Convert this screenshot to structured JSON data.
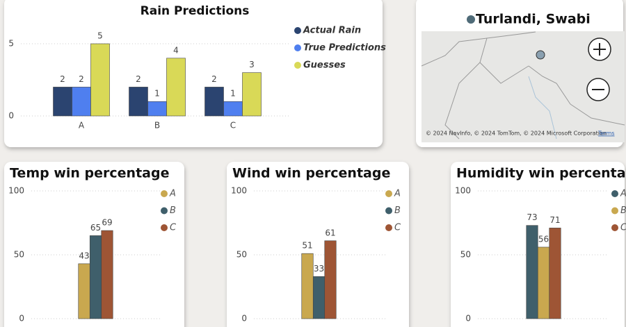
{
  "chart_data": [
    {
      "type": "bar",
      "title": "Rain Predictions",
      "categories": [
        "A",
        "B",
        "C"
      ],
      "series": [
        {
          "name": "Actual Rain",
          "color": "#2b4470",
          "values": [
            2,
            2,
            2
          ]
        },
        {
          "name": "True Predictions",
          "color": "#4f7fef",
          "values": [
            2,
            1,
            1
          ]
        },
        {
          "name": "Guesses",
          "color": "#d9d957",
          "values": [
            5,
            4,
            3
          ]
        }
      ],
      "ylim": [
        0,
        5
      ],
      "yticks": [
        0,
        5
      ],
      "grid": true,
      "legend": "right"
    },
    {
      "type": "bar",
      "title": "Temp win percentage",
      "series": [
        {
          "name": "A",
          "color": "#c9a84f",
          "values": [
            43
          ]
        },
        {
          "name": "B",
          "color": "#3f5f6b",
          "values": [
            65
          ]
        },
        {
          "name": "C",
          "color": "#9e5535",
          "values": [
            69
          ]
        }
      ],
      "ylim": [
        0,
        100
      ],
      "yticks": [
        0,
        50,
        100
      ],
      "grid": true,
      "legend": "right"
    },
    {
      "type": "bar",
      "title": "Wind win percentage",
      "series": [
        {
          "name": "A",
          "color": "#c9a84f",
          "values": [
            51
          ]
        },
        {
          "name": "B",
          "color": "#3f5f6b",
          "values": [
            33
          ]
        },
        {
          "name": "C",
          "color": "#9e5535",
          "values": [
            61
          ]
        }
      ],
      "ylim": [
        0,
        100
      ],
      "yticks": [
        0,
        50,
        100
      ],
      "grid": true,
      "legend": "right"
    },
    {
      "type": "bar",
      "title": "Humidity win percentage",
      "series": [
        {
          "name": "A",
          "color": "#3f5f6b",
          "values": [
            73
          ]
        },
        {
          "name": "B",
          "color": "#c9a84f",
          "values": [
            56
          ]
        },
        {
          "name": "C",
          "color": "#9e5535",
          "values": [
            71
          ]
        }
      ],
      "ylim": [
        0,
        100
      ],
      "yticks": [
        0,
        50,
        100
      ],
      "grid": true,
      "legend": "right"
    }
  ],
  "map": {
    "title": "Turlandi, Swabi",
    "attribution": "© 2024 NavInfo, © 2024 TomTom, © 2024 Microsoft Corporation",
    "terms": "Terms"
  }
}
